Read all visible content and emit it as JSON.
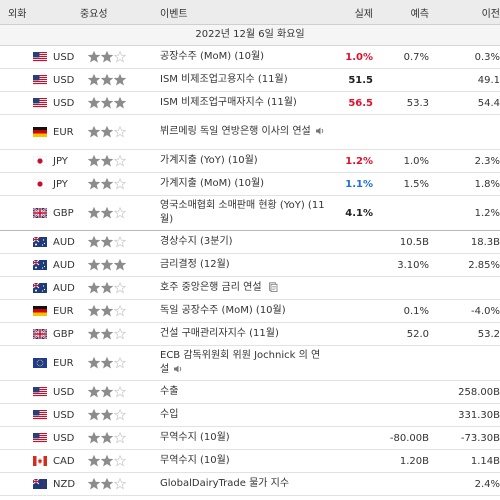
{
  "header": {
    "currency": "외화",
    "importance": "중요성",
    "event": "이벤트",
    "actual": "실제",
    "forecast": "예측",
    "previous": "이전"
  },
  "date_label": "2022년 12월 6일 화요일",
  "colors": {
    "up": "#e0102c",
    "down": "#1e6fd6",
    "star_on": "#8c8c8c",
    "star_off": "#cfcfcf"
  },
  "rows": [
    {
      "cur": "USD",
      "flag": "us",
      "stars": 2,
      "event": "공장수주 (MoM) (10월)",
      "actual": "1.0%",
      "actual_color": "red",
      "forecast": "0.7%",
      "previous": "0.3%"
    },
    {
      "cur": "USD",
      "flag": "us",
      "stars": 3,
      "event": "ISM 비제조업고용지수 (11월)",
      "actual": "51.5",
      "actual_color": "black",
      "forecast": "",
      "previous": "49.1"
    },
    {
      "cur": "USD",
      "flag": "us",
      "stars": 3,
      "event": "ISM 비제조업구매자지수 (11월)",
      "actual": "56.5",
      "actual_color": "red",
      "forecast": "53.3",
      "previous": "54.4"
    },
    {
      "cur": "EUR",
      "flag": "de",
      "stars": 2,
      "event": "뷔르메링 독일 연방은행 이사의 연설",
      "icon": "sound",
      "actual": "",
      "forecast": "",
      "previous": "",
      "tall": true
    },
    {
      "cur": "JPY",
      "flag": "jp",
      "stars": 2,
      "event": "가계지출 (YoY) (10월)",
      "actual": "1.2%",
      "actual_color": "red",
      "forecast": "1.0%",
      "previous": "2.3%"
    },
    {
      "cur": "JPY",
      "flag": "jp",
      "stars": 2,
      "event": "가계지출 (MoM) (10월)",
      "actual": "1.1%",
      "actual_color": "blue",
      "forecast": "1.5%",
      "previous": "1.8%"
    },
    {
      "cur": "GBP",
      "flag": "gb",
      "stars": 2,
      "event": "영국소매협회 소매판매 현황 (YoY) (11월)",
      "actual": "4.1%",
      "actual_color": "black",
      "forecast": "",
      "previous": "1.2%",
      "tall": true,
      "sep": true
    },
    {
      "cur": "AUD",
      "flag": "au",
      "stars": 2,
      "event": "경상수지 (3분기)",
      "actual": "",
      "forecast": "10.5B",
      "previous": "18.3B"
    },
    {
      "cur": "AUD",
      "flag": "au",
      "stars": 3,
      "event": "금리결정 (12월)",
      "actual": "",
      "forecast": "3.10%",
      "previous": "2.85%"
    },
    {
      "cur": "AUD",
      "flag": "au",
      "stars": 2,
      "event": "호주 중앙은행 금리 연설",
      "icon": "doc",
      "actual": "",
      "forecast": "",
      "previous": ""
    },
    {
      "cur": "EUR",
      "flag": "de",
      "stars": 2,
      "event": "독일 공장수주 (MoM) (10월)",
      "actual": "",
      "forecast": "0.1%",
      "previous": "-4.0%"
    },
    {
      "cur": "GBP",
      "flag": "gb",
      "stars": 2,
      "event": "건설 구매관리자지수 (11월)",
      "actual": "",
      "forecast": "52.0",
      "previous": "53.2"
    },
    {
      "cur": "EUR",
      "flag": "eu",
      "stars": 2,
      "event": "ECB 감독위원회 위원 Jochnick 의 연설",
      "icon": "sound",
      "actual": "",
      "forecast": "",
      "previous": "",
      "tall": true
    },
    {
      "cur": "USD",
      "flag": "us",
      "stars": 2,
      "event": "수출",
      "actual": "",
      "forecast": "",
      "previous": "258.00B"
    },
    {
      "cur": "USD",
      "flag": "us",
      "stars": 2,
      "event": "수입",
      "actual": "",
      "forecast": "",
      "previous": "331.30B"
    },
    {
      "cur": "USD",
      "flag": "us",
      "stars": 2,
      "event": "무역수지 (10월)",
      "actual": "",
      "forecast": "-80.00B",
      "previous": "-73.30B"
    },
    {
      "cur": "CAD",
      "flag": "ca",
      "stars": 2,
      "event": "무역수지 (10월)",
      "actual": "",
      "forecast": "1.20B",
      "previous": "1.14B"
    },
    {
      "cur": "NZD",
      "flag": "nz",
      "stars": 2,
      "event": "GlobalDairyTrade 물가 지수",
      "actual": "",
      "forecast": "",
      "previous": "2.4%"
    }
  ]
}
